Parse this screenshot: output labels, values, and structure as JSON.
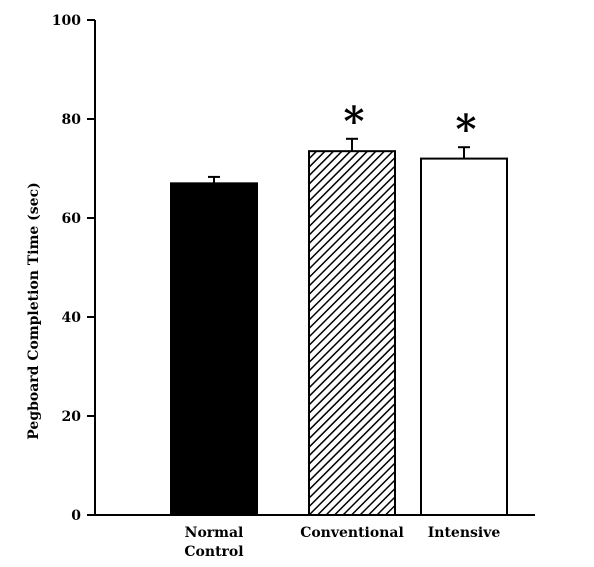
{
  "chart_data": {
    "type": "bar",
    "title": "",
    "xlabel": "",
    "ylabel": "Pegboard Completion Time (sec)",
    "ylim": [
      0,
      100
    ],
    "yticks": [
      0,
      20,
      40,
      60,
      80,
      100
    ],
    "grid": false,
    "categories": [
      {
        "line1": "Normal",
        "line2": "Control"
      },
      {
        "line1": "Conventional",
        "line2": ""
      },
      {
        "line1": "Intensive",
        "line2": ""
      }
    ],
    "values": [
      67,
      73.5,
      72
    ],
    "error": [
      1.3,
      2.5,
      2.3
    ],
    "significance": [
      "",
      "*",
      "*"
    ],
    "fills": [
      "solid-black",
      "diagonal-hatch",
      "white"
    ],
    "colors": {
      "bar_stroke": "#000000",
      "solid": "#000000",
      "white": "#ffffff"
    }
  }
}
